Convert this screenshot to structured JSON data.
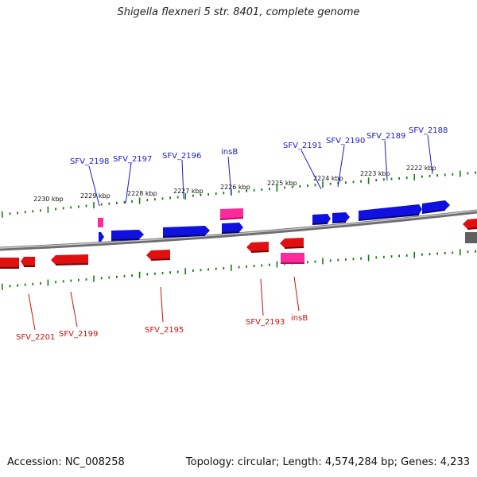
{
  "title": "Shigella flexneri 5 str. 8401, complete genome",
  "footer": {
    "accession": "Accession: NC_008258",
    "topology": "Topology: circular; Length: 4,574,284 bp; Genes: 4,233"
  },
  "colors": {
    "forward_gene": "#1010e0",
    "reverse_gene": "#e01010",
    "insertion": "#ff2a9a",
    "backbone": "#7a7a7a",
    "tick": "#1a7a1a",
    "forward_label": "#1a1ad0",
    "reverse_label": "#cc1010"
  },
  "scale_labels": [
    "2230 kbp",
    "2229 kbp",
    "2228 kbp",
    "2227 kbp",
    "2226 kbp",
    "2225 kbp",
    "2224 kbp",
    "2223 kbp",
    "2222 kbp"
  ],
  "forward_labels": [
    "SFV_2198",
    "SFV_2197",
    "SFV_2196",
    "insB",
    "SFV_2191",
    "SFV_2190",
    "SFV_2189",
    "SFV_2188"
  ],
  "reverse_labels": [
    "SFV_2201",
    "SFV_2199",
    "SFV_2195",
    "SFV_2193",
    "insB"
  ]
}
